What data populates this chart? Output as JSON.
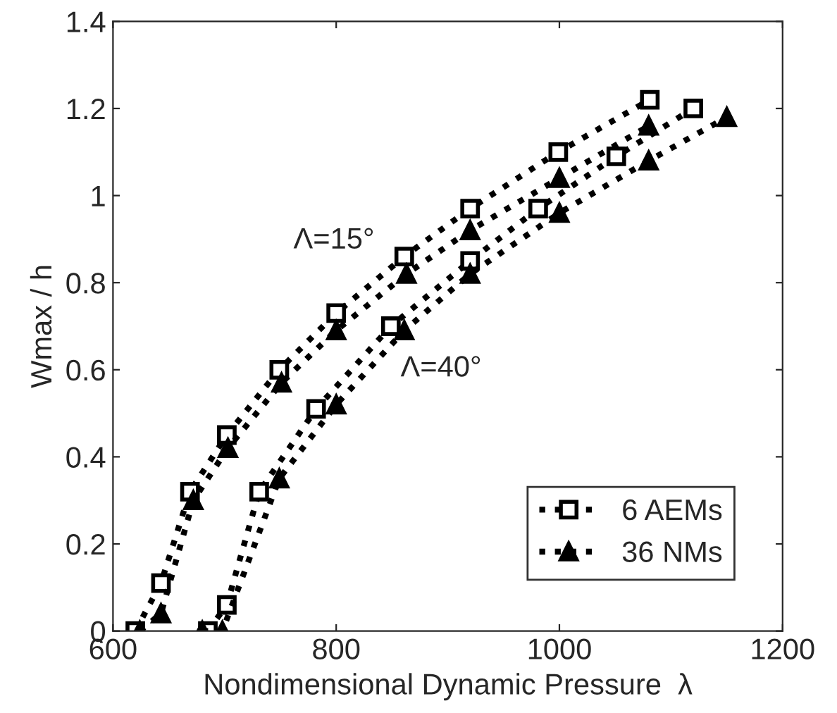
{
  "chart_data": {
    "type": "line",
    "xlabel": "Nondimensional Dynamic Pressure  λ",
    "ylabel": "Wmax / h",
    "xlim": [
      600,
      1200
    ],
    "xticks": [
      600,
      800,
      1000,
      1200
    ],
    "ylim": [
      0,
      1.4
    ],
    "yticks": [
      0,
      0.2,
      0.4,
      0.6,
      0.8,
      1,
      1.2,
      1.4
    ],
    "grid": false,
    "legend": "bottom right",
    "line_style": "dotted",
    "series": [
      {
        "name": "6 AEMs",
        "color": "#000000",
        "marker": "square",
        "x": [
          620,
          643,
          669,
          702,
          749,
          800,
          861,
          920,
          999,
          1081
        ],
        "values": [
          0,
          0.11,
          0.32,
          0.45,
          0.6,
          0.73,
          0.86,
          0.97,
          1.1,
          1.22
        ]
      },
      {
        "name": "36 NMs",
        "color": "#000000",
        "marker": "triangle",
        "x": [
          624,
          643,
          672,
          703,
          751,
          800,
          863,
          920,
          1000,
          1080
        ],
        "values": [
          0,
          0.04,
          0.3,
          0.42,
          0.57,
          0.69,
          0.82,
          0.92,
          1.04,
          1.16
        ]
      },
      {
        "color": "#000000",
        "marker": "square",
        "x": [
          685,
          702,
          731,
          782,
          849,
          920,
          981,
          1051,
          1120
        ],
        "values": [
          0,
          0.06,
          0.32,
          0.51,
          0.7,
          0.85,
          0.97,
          1.09,
          1.2
        ]
      },
      {
        "color": "#000000",
        "marker": "triangle",
        "x": [
          680,
          698,
          749,
          800,
          861,
          920,
          1000,
          1080,
          1150
        ],
        "values": [
          0,
          0,
          0.35,
          0.52,
          0.69,
          0.82,
          0.96,
          1.08,
          1.18
        ]
      }
    ],
    "annotations": [
      "Λ=15°",
      "Λ=40°"
    ]
  }
}
